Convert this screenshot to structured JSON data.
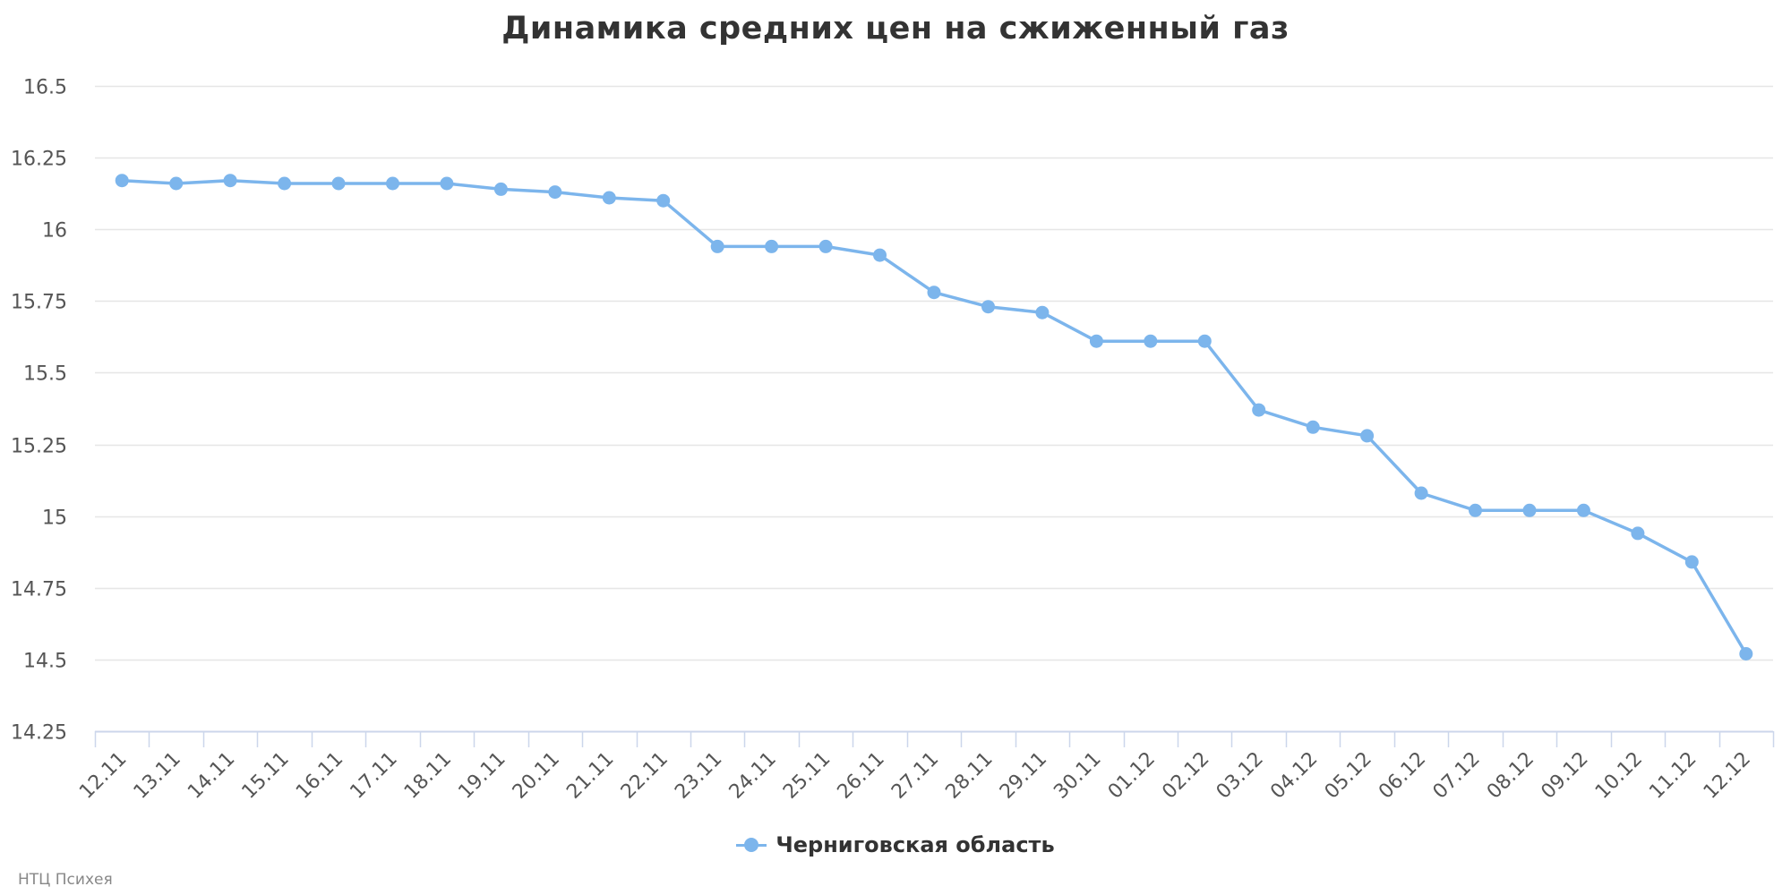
{
  "chart_data": {
    "type": "line",
    "title": "Динамика средних цен на сжиженный газ",
    "xlabel": "",
    "ylabel": "",
    "ylim": [
      14.25,
      16.5
    ],
    "yticks": [
      "16.5",
      "16.25",
      "16",
      "15.75",
      "15.5",
      "15.25",
      "15",
      "14.75",
      "14.5",
      "14.25"
    ],
    "categories": [
      "12.11",
      "13.11",
      "14.11",
      "15.11",
      "16.11",
      "17.11",
      "18.11",
      "19.11",
      "20.11",
      "21.11",
      "22.11",
      "23.11",
      "24.11",
      "25.11",
      "26.11",
      "27.11",
      "28.11",
      "29.11",
      "30.11",
      "01.12",
      "02.12",
      "03.12",
      "04.12",
      "05.12",
      "06.12",
      "07.12",
      "08.12",
      "09.12",
      "10.12",
      "11.12",
      "12.12"
    ],
    "series": [
      {
        "name": "Черниговская область",
        "values": [
          16.17,
          16.16,
          16.17,
          16.16,
          16.16,
          16.16,
          16.16,
          16.14,
          16.13,
          16.11,
          16.1,
          15.94,
          15.94,
          15.94,
          15.91,
          15.78,
          15.73,
          15.71,
          15.61,
          15.61,
          15.61,
          15.37,
          15.31,
          15.28,
          15.08,
          15.02,
          15.02,
          15.02,
          14.94,
          14.84,
          14.52
        ]
      }
    ],
    "grid": true,
    "legend_position": "bottom-center",
    "colors": {
      "series": "#7cb5ec",
      "grid": "#e6e6e6",
      "axis": "#ccd6eb"
    }
  },
  "credits": "НТЦ Психея"
}
